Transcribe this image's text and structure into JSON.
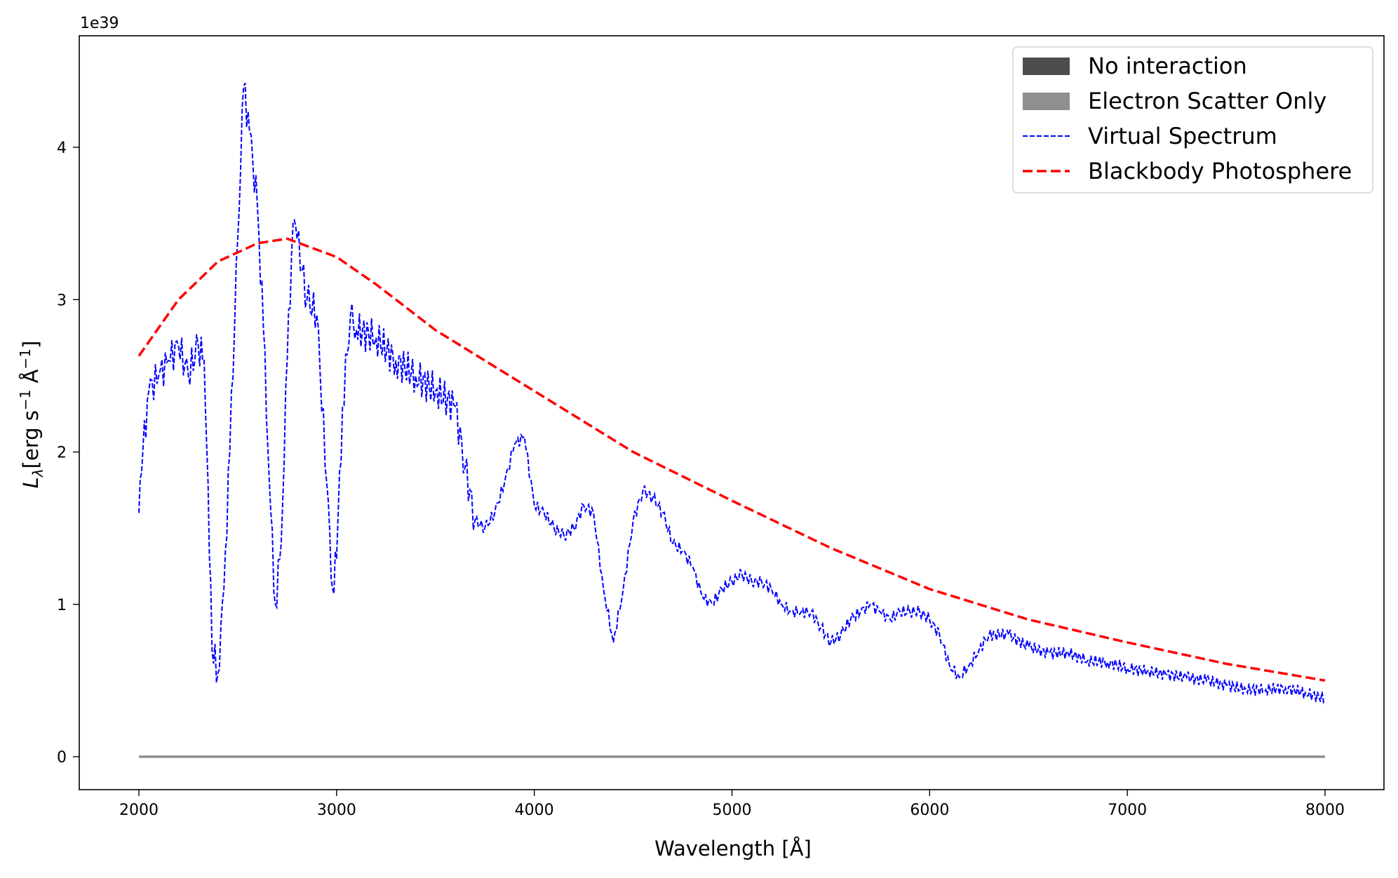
{
  "chart_data": {
    "type": "line",
    "title": "",
    "xlabel": "Wavelength [Å]",
    "ylabel": "L_λ [erg s⁻¹ Å⁻¹]",
    "ylabel_parts": {
      "symbol": "L",
      "sub": "λ",
      "unit": "[erg s",
      "exp1": "−1",
      "mid": " Å",
      "exp2": "−1",
      "end": "]"
    },
    "y_offset_text": "1e39",
    "xlim": [
      1700,
      8300
    ],
    "ylim": [
      -0.22,
      4.75
    ],
    "xticks": [
      2000,
      3000,
      4000,
      5000,
      6000,
      7000,
      8000
    ],
    "yticks": [
      0,
      1,
      2,
      3,
      4
    ],
    "grid": false,
    "legend_position": "top-right",
    "legend": [
      {
        "label": "No interaction",
        "color": "#4d4d4d",
        "kind": "patch"
      },
      {
        "label": "Electron Scatter Only",
        "color": "#8f8f8f",
        "kind": "patch"
      },
      {
        "label": "Virtual Spectrum",
        "color": "#0000ff",
        "kind": "dashed-thin"
      },
      {
        "label": "Blackbody Photosphere",
        "color": "#ff0000",
        "kind": "dashed-thick"
      }
    ],
    "series": [
      {
        "name": "Virtual Spectrum",
        "color": "#0000ff",
        "x": [
          2000,
          2020,
          2050,
          2100,
          2150,
          2200,
          2250,
          2300,
          2330,
          2350,
          2370,
          2400,
          2430,
          2460,
          2500,
          2530,
          2560,
          2600,
          2630,
          2660,
          2690,
          2720,
          2750,
          2780,
          2800,
          2850,
          2900,
          2950,
          2980,
          3000,
          3030,
          3070,
          3100,
          3200,
          3300,
          3400,
          3500,
          3600,
          3650,
          3700,
          3750,
          3800,
          3850,
          3900,
          3950,
          4000,
          4050,
          4100,
          4150,
          4200,
          4250,
          4300,
          4350,
          4400,
          4450,
          4500,
          4550,
          4600,
          4650,
          4700,
          4750,
          4800,
          4850,
          4900,
          4950,
          5000,
          5050,
          5100,
          5150,
          5200,
          5250,
          5300,
          5350,
          5400,
          5450,
          5500,
          5550,
          5600,
          5650,
          5700,
          5750,
          5800,
          5850,
          5900,
          5950,
          6000,
          6050,
          6100,
          6150,
          6200,
          6250,
          6300,
          6400,
          6500,
          6600,
          6700,
          6800,
          6900,
          7000,
          7100,
          7200,
          7300,
          7400,
          7500,
          7600,
          7700,
          7800,
          7900,
          8000
        ],
        "y": [
          1.6,
          2.0,
          2.4,
          2.5,
          2.6,
          2.7,
          2.5,
          2.7,
          2.6,
          1.8,
          0.7,
          0.55,
          1.1,
          2.0,
          3.4,
          4.4,
          4.1,
          3.6,
          2.8,
          1.8,
          1.0,
          1.4,
          2.6,
          3.5,
          3.4,
          3.0,
          2.9,
          1.8,
          1.1,
          1.3,
          2.3,
          2.9,
          2.8,
          2.75,
          2.6,
          2.5,
          2.4,
          2.3,
          1.9,
          1.55,
          1.5,
          1.6,
          1.8,
          2.05,
          2.1,
          1.65,
          1.6,
          1.5,
          1.45,
          1.5,
          1.65,
          1.6,
          1.1,
          0.75,
          1.1,
          1.55,
          1.75,
          1.7,
          1.6,
          1.4,
          1.35,
          1.25,
          1.05,
          1.0,
          1.1,
          1.15,
          1.2,
          1.15,
          1.15,
          1.1,
          1.0,
          0.95,
          0.95,
          0.95,
          0.85,
          0.75,
          0.8,
          0.9,
          0.95,
          1.0,
          0.95,
          0.9,
          0.95,
          0.95,
          0.95,
          0.9,
          0.8,
          0.6,
          0.52,
          0.6,
          0.7,
          0.8,
          0.8,
          0.72,
          0.68,
          0.68,
          0.63,
          0.62,
          0.58,
          0.56,
          0.54,
          0.52,
          0.5,
          0.47,
          0.44,
          0.44,
          0.45,
          0.42,
          0.38
        ]
      },
      {
        "name": "Blackbody Photosphere",
        "color": "#ff0000",
        "x": [
          2000,
          2200,
          2400,
          2600,
          2750,
          3000,
          3200,
          3500,
          4000,
          4500,
          5000,
          5500,
          6000,
          6500,
          7000,
          7500,
          8000
        ],
        "y": [
          2.63,
          3.0,
          3.25,
          3.37,
          3.4,
          3.28,
          3.1,
          2.8,
          2.4,
          2.0,
          1.68,
          1.37,
          1.1,
          0.9,
          0.75,
          0.61,
          0.5
        ]
      },
      {
        "name": "Electron Scatter Only",
        "color": "#8f8f8f",
        "x": [
          2000,
          8000
        ],
        "y": [
          0,
          0
        ]
      },
      {
        "name": "No interaction",
        "color": "#4d4d4d",
        "x": [
          2000,
          8000
        ],
        "y": [
          0,
          0
        ]
      }
    ]
  }
}
